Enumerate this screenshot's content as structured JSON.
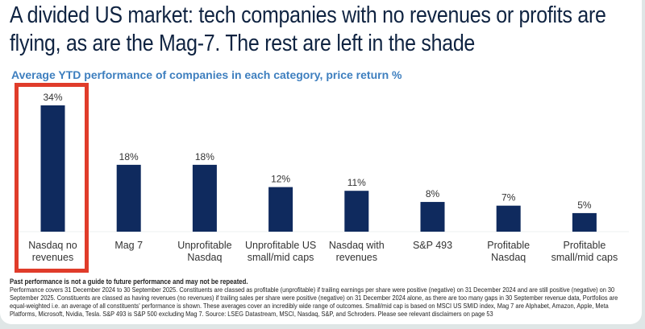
{
  "title": "A divided US market: tech companies with no revenues or profits are flying, as are the Mag-7. The rest are left in the shade",
  "chart_data": {
    "type": "bar",
    "title": "Average YTD performance of companies in each category, price return %",
    "categories": [
      [
        "Nasdaq no",
        "revenues"
      ],
      [
        "Mag 7"
      ],
      [
        "Unprofitable",
        "Nasdaq"
      ],
      [
        "Unprofitable US",
        "small/mid caps"
      ],
      [
        "Nasdaq with",
        "revenues"
      ],
      [
        "S&P 493"
      ],
      [
        "Profitable",
        "Nasdaq"
      ],
      [
        "Profitable",
        "small/mid caps"
      ]
    ],
    "values": [
      34,
      18,
      18,
      12,
      11,
      8,
      7,
      5
    ],
    "data_labels": [
      "34%",
      "18%",
      "18%",
      "12%",
      "11%",
      "8%",
      "7%",
      "5%"
    ],
    "ylim": [
      0,
      34
    ],
    "grid": false,
    "highlighted_category": "Nasdaq no revenues",
    "colors": {
      "bar": "#0f2a5e",
      "highlight_box": "#e03c2a",
      "subtitle": "#3e7fbf"
    }
  },
  "footnote": {
    "bold": "Past performance is not a guide to future performance and may not be repeated.",
    "text": "Performance covers 31 December 2024 to 30 September 2025. Constituents are classed as profitable (unprofitable) if trailing earnings per share were positive (negative) on 31 December 2024 and are still positive (negative) on 30 September 2025. Constituents are classed as having revenues (no revenues) if trailing sales per share were positive (negative) on 31 December 2024 alone, as there are too many gaps in 30 September revenue data, Portfolios are equal-weighted i.e. an average of all constituents' performance is shown. These averages cover an incredibly wide range of outcomes. Small/mid cap is based on MSCI US SMID index, Mag 7 are Alphabet, Amazon, Apple, Meta Platforms, Microsoft, Nvidia, Tesla. S&P 493 is S&P 500 excluding Mag 7. Source: LSEG Datastream, MSCI, Nasdaq, S&P, and Schroders. Please see relevant disclaimers on page 53"
  }
}
